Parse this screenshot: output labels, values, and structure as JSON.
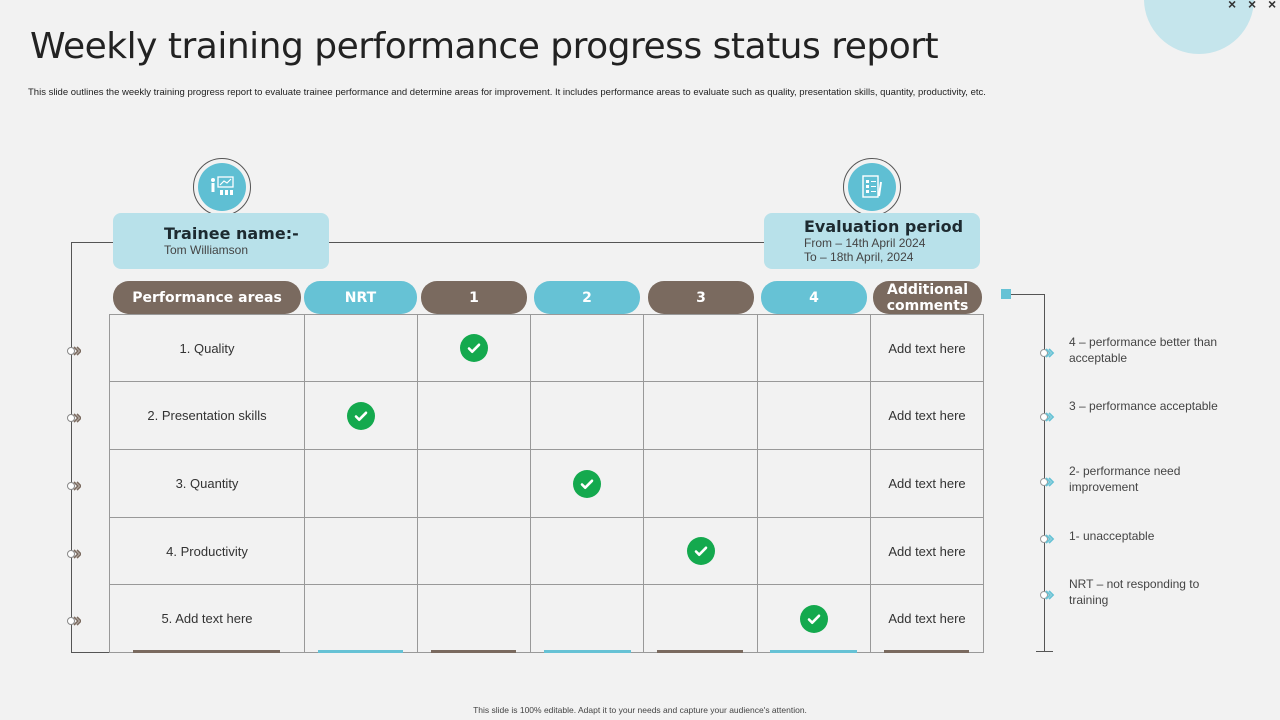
{
  "header": {
    "title": "Weekly training performance progress status report",
    "subtitle": "This slide outlines the weekly training progress report to evaluate trainee performance and determine areas for improvement. It includes performance areas to evaluate such as quality, presentation skills, quantity, productivity, etc."
  },
  "trainee": {
    "heading": "Trainee name:-",
    "name": "Tom Williamson",
    "icon": "presentation-trainer-icon"
  },
  "evaluation": {
    "heading": "Evaluation period",
    "from": "From – 14th April 2024",
    "to": "To – 18th April, 2024",
    "icon": "clipboard-checklist-icon"
  },
  "table": {
    "columns": [
      "Performance areas",
      "NRT",
      "1",
      "2",
      "3",
      "4",
      "Additional\ncomments"
    ],
    "rows": [
      {
        "area": "1. Quality",
        "rating": "1",
        "comment": "Add text here"
      },
      {
        "area": "2. Presentation skills",
        "rating": "NRT",
        "comment": "Add text here"
      },
      {
        "area": "3. Quantity",
        "rating": "2",
        "comment": "Add text here"
      },
      {
        "area": "4. Productivity",
        "rating": "3",
        "comment": "Add text here"
      },
      {
        "area": "5. Add text here",
        "rating": "4",
        "comment": "Add text here"
      }
    ]
  },
  "legend": [
    "4 – performance  better than acceptable",
    "3 – performance acceptable",
    "2- performance  need improvement",
    "1- unacceptable",
    "NRT – not responding to training"
  ],
  "footer": "This slide is 100% editable. Adapt it to your needs and capture your audience's attention.",
  "colors": {
    "brown": "#7a6a5f",
    "teal": "#66c2d5",
    "light": "#b8e1ea",
    "check": "#14a94e"
  }
}
